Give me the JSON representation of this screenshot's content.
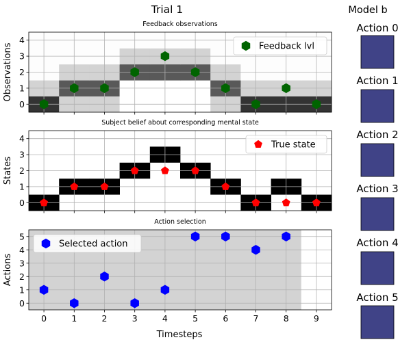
{
  "figure": {
    "title": "Trial 1",
    "side_title": "Model b",
    "xlabel": "Timesteps"
  },
  "model_actions": {
    "labels": [
      "Action 0",
      "Action 1",
      "Action 2",
      "Action 3",
      "Action 4",
      "Action 5"
    ],
    "swatch_color": "#404387"
  },
  "chart_data": [
    {
      "type": "heatmap",
      "title": "Feedback observations",
      "ylabel": "Observations",
      "xlim": [
        -0.5,
        9.5
      ],
      "ylim": [
        -0.5,
        4.5
      ],
      "yticks": [
        0,
        1,
        2,
        3,
        4
      ],
      "x_ticks": [
        0,
        1,
        2,
        3,
        4,
        5,
        6,
        7,
        8,
        9
      ],
      "grid": true,
      "legend": {
        "position": "top-right",
        "label": "Feedback lvl"
      },
      "marker_color": "#006400",
      "cell_shades": [
        [
          "#333333",
          "#d3d3d3",
          "#d3d3d3",
          "#ffffff",
          "#ffffff",
          "#ffffff",
          "#d3d3d3",
          "#333333",
          "#333333",
          "#333333"
        ],
        [
          "#d3d3d3",
          "#595959",
          "#595959",
          "#ffffff",
          "#ffffff",
          "#ffffff",
          "#595959",
          "#d3d3d3",
          "#d3d3d3",
          "#d3d3d3"
        ],
        [
          "#fdfdfd",
          "#d3d3d3",
          "#d3d3d3",
          "#595959",
          "#595959",
          "#595959",
          "#d3d3d3",
          "#fdfdfd",
          "#fdfdfd",
          "#fdfdfd"
        ],
        [
          "#fdfdfd",
          "#fdfdfd",
          "#fdfdfd",
          "#d3d3d3",
          "#d3d3d3",
          "#d3d3d3",
          "#fdfdfd",
          "#fdfdfd",
          "#fdfdfd",
          "#fdfdfd"
        ],
        [
          "#fdfdfd",
          "#fdfdfd",
          "#fdfdfd",
          "#fdfdfd",
          "#fdfdfd",
          "#fdfdfd",
          "#fdfdfd",
          "#fdfdfd",
          "#fdfdfd",
          "#fdfdfd"
        ]
      ],
      "series": [
        {
          "name": "Feedback lvl",
          "marker": "hexagon",
          "x": [
            0,
            1,
            2,
            3,
            4,
            5,
            6,
            7,
            8,
            9
          ],
          "y": [
            0,
            1,
            1,
            2,
            3,
            2,
            1,
            0,
            1,
            0
          ]
        }
      ]
    },
    {
      "type": "heatmap",
      "title": "Subject belief about corresponding mental state",
      "ylabel": "States",
      "xlim": [
        -0.5,
        9.5
      ],
      "ylim": [
        -0.5,
        4.5
      ],
      "yticks": [
        0,
        1,
        2,
        3,
        4
      ],
      "x_ticks": [
        0,
        1,
        2,
        3,
        4,
        5,
        6,
        7,
        8,
        9
      ],
      "grid": true,
      "legend": {
        "position": "top-right",
        "label": "True state"
      },
      "marker_color": "#ff0000",
      "belief_state": [
        0,
        1,
        1,
        2,
        3,
        2,
        1,
        0,
        1,
        0
      ],
      "belief_color": "#000000",
      "series": [
        {
          "name": "True state",
          "marker": "pentagon",
          "x": [
            0,
            1,
            2,
            3,
            4,
            5,
            6,
            7,
            8,
            9
          ],
          "y": [
            0,
            1,
            1,
            2,
            2,
            2,
            1,
            0,
            0,
            0
          ]
        }
      ]
    },
    {
      "type": "scatter",
      "title": "Action selection",
      "ylabel": "Actions",
      "xlim": [
        -0.5,
        9.5
      ],
      "ylim": [
        -0.5,
        5.5
      ],
      "yticks": [
        0,
        1,
        2,
        3,
        4,
        5
      ],
      "x_ticks": [
        0,
        1,
        2,
        3,
        4,
        5,
        6,
        7,
        8,
        9
      ],
      "grid": true,
      "shaded_x_range": [
        -0.5,
        8.5
      ],
      "shade_color": "#d3d3d3",
      "legend": {
        "position": "top-left",
        "label": "Selected action"
      },
      "marker_color": "#0000ff",
      "series": [
        {
          "name": "Selected action",
          "marker": "hexagon",
          "x": [
            0,
            1,
            2,
            3,
            4,
            5,
            6,
            7,
            8
          ],
          "y": [
            1,
            0,
            2,
            0,
            1,
            5,
            5,
            4,
            5
          ]
        }
      ]
    }
  ]
}
